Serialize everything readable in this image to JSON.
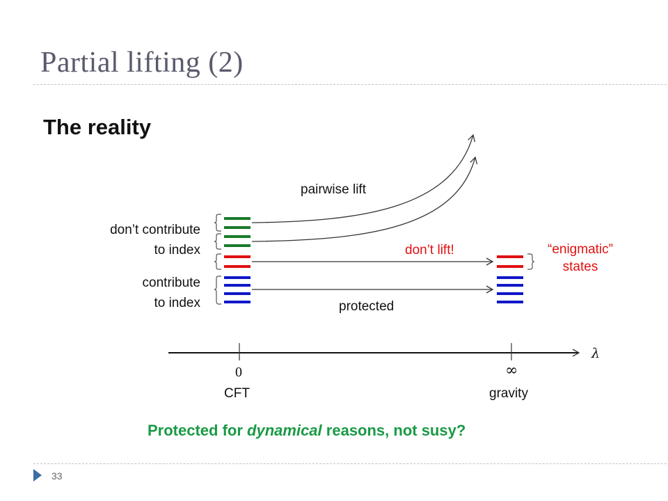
{
  "slide": {
    "title": "Partial lifting (2)",
    "subtitle": "The reality",
    "number": "33"
  },
  "labels": {
    "pairwise_lift": "pairwise lift",
    "dont_contribute_1": "don’t contribute",
    "dont_contribute_2": "to index",
    "contribute_1": "contribute",
    "contribute_2": "to index",
    "dont_lift": "don’t lift!",
    "enigmatic_1": "“enigmatic”",
    "enigmatic_2": "states",
    "protected": "protected"
  },
  "axis": {
    "symbol": "λ",
    "tick_zero": "0",
    "tick_inf": "∞",
    "label_zero": "CFT",
    "label_inf": "gravity"
  },
  "conclusion": {
    "part1": "Protected for",
    "part2": "dynamical",
    "part3": "reasons, not susy?"
  },
  "colors": {
    "green": "#1a7a2a",
    "red": "#e01010",
    "blue": "#1018c8",
    "accent_green": "#1a9a45",
    "title_gray": "#5a5a6e"
  }
}
